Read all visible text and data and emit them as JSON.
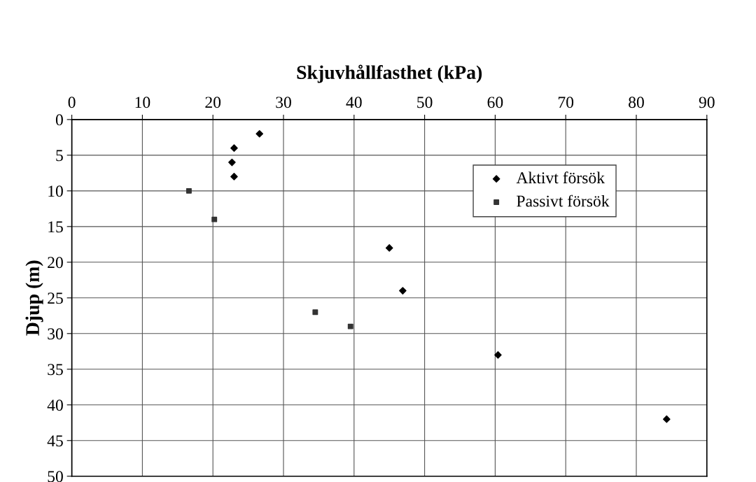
{
  "chart_data": {
    "type": "scatter",
    "xlabel": "Skjuvhållfasthet (kPa)",
    "ylabel": "Djup (m)",
    "xlim": [
      0,
      90
    ],
    "xticks": [
      0,
      10,
      20,
      30,
      40,
      50,
      60,
      70,
      80,
      90
    ],
    "ylim": [
      50,
      0
    ],
    "yticks": [
      0,
      5,
      10,
      15,
      20,
      25,
      30,
      35,
      40,
      45,
      50
    ],
    "grid": true,
    "legend": "right",
    "series": [
      {
        "name": "Aktivt försök",
        "color": "#000000",
        "marker": "diamond",
        "x": [
          26.6,
          23.0,
          22.7,
          23.0,
          45.0,
          46.9,
          60.4,
          84.3
        ],
        "values": [
          2,
          4,
          6,
          8,
          18,
          24,
          33,
          42
        ]
      },
      {
        "name": "Passivt försök",
        "color": "#333333",
        "marker": "square",
        "x": [
          16.6,
          20.2,
          34.5,
          39.5
        ],
        "values": [
          10,
          14,
          27,
          29
        ]
      }
    ]
  }
}
